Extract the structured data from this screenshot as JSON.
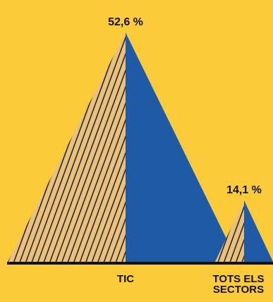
{
  "chart_data": {
    "type": "bar",
    "mark": "triangle",
    "categories": [
      "TIC",
      "TOTS ELS SECTORS"
    ],
    "category_lines": [
      [
        "TIC"
      ],
      [
        "TOTS ELS",
        "SECTORS"
      ]
    ],
    "values": [
      52.6,
      14.1
    ],
    "value_labels": [
      "52,6 %",
      "14,1 %"
    ],
    "title": "",
    "xlabel": "",
    "ylabel": "",
    "ylim": [
      0,
      56.5
    ],
    "grid": false,
    "legend": "none"
  },
  "colors": {
    "background": "#FCCB3A",
    "triangle_right": "#1F5AA6",
    "triangle_left": "#E9C07C",
    "hatch": "#111111",
    "baseline": "#111111",
    "text": "#111111"
  }
}
